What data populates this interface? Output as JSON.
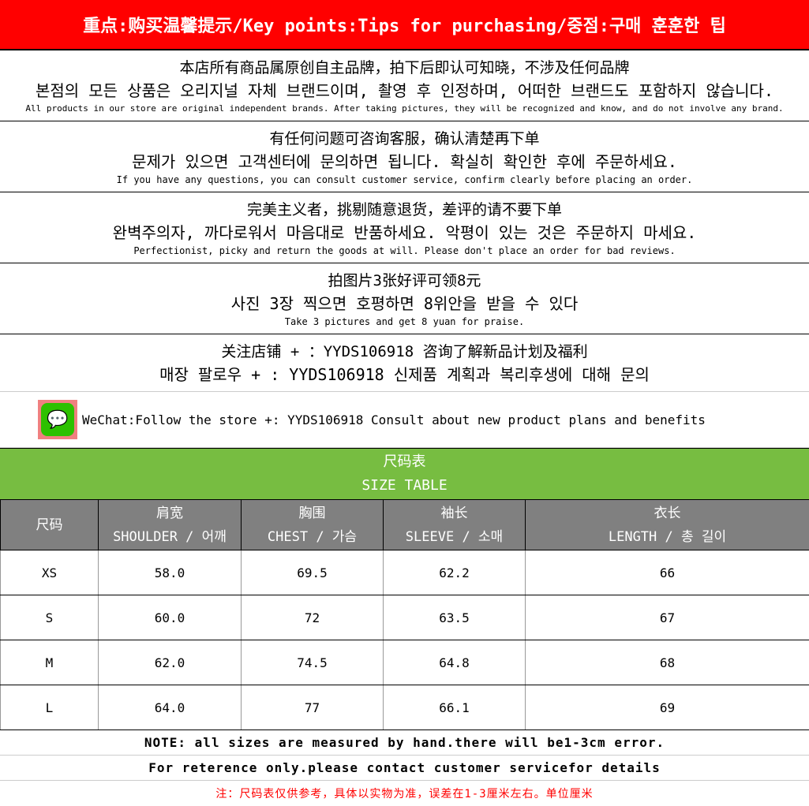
{
  "header": {
    "title": "重点:购买温馨提示/Key points:Tips for purchasing/중점:구매 훈훈한 팁"
  },
  "sections": [
    {
      "zh": "本店所有商品属原创自主品牌，拍下后即认可知晓，不涉及任何品牌",
      "ko": "본점의 모든 상품은 오리지널 자체 브랜드이며, 촬영 후 인정하며, 어떠한 브랜드도 포함하지 않습니다.",
      "en": "All products in our store are original independent brands. After taking pictures, they will be recognized and know, and do not involve any brand."
    },
    {
      "zh": "有任何问题可咨询客服，确认清楚再下单",
      "ko": "문제가 있으면 고객센터에 문의하면 됩니다. 확실히 확인한 후에 주문하세요.",
      "en": "If you have any questions, you can consult customer service, confirm clearly before placing an order."
    },
    {
      "zh": "完美主义者，挑剔随意退货，差评的请不要下单",
      "ko": "완벽주의자, 까다로워서 마음대로 반품하세요. 악평이 있는 것은 주문하지 마세요.",
      "en": "Perfectionist, picky and return the goods at will. Please don't place an order for bad reviews."
    },
    {
      "zh": "拍图片3张好评可领8元",
      "ko": "사진 3장 찍으면 호평하면 8위안을 받을 수 있다",
      "en": "Take 3 pictures and get 8 yuan for praise."
    },
    {
      "zh": "关注店铺 + ：YYDS106918 咨询了解新品计划及福利",
      "ko": "매장 팔로우 + : YYDS106918 신제품 계획과 복리후생에 대해 문의"
    }
  ],
  "wechat": {
    "icon": "wechat-icon",
    "text": "WeChat:Follow the store +: YYDS106918 Consult about new product plans and benefits"
  },
  "size_table": {
    "title_zh": "尺码表",
    "title_en": "SIZE TABLE",
    "columns": [
      {
        "zh": "尺码",
        "en": ""
      },
      {
        "zh": "肩宽",
        "en": "SHOULDER / 어깨"
      },
      {
        "zh": "胸围",
        "en": "CHEST / 가슴"
      },
      {
        "zh": "袖长",
        "en": "SLEEVE / 소매"
      },
      {
        "zh": "衣长",
        "en": "LENGTH / 총 길이"
      }
    ],
    "rows": [
      [
        "XS",
        "58.0",
        "69.5",
        "62.2",
        "66"
      ],
      [
        "S",
        "60.0",
        "72",
        "63.5",
        "67"
      ],
      [
        "M",
        "62.0",
        "74.5",
        "64.8",
        "68"
      ],
      [
        "L",
        "64.0",
        "77",
        "66.1",
        "69"
      ]
    ]
  },
  "notes": [
    "NOTE: all sizes are measured by hand.there will be1-3cm error.",
    "For reterence only.please contact customer servicefor details",
    "注：尺码表仅供参考，具体以实物为准，误差在1-3厘米左右。单位厘米"
  ],
  "colors": {
    "header": "#ff0000",
    "table_title": "#77bd41",
    "table_head": "#808080",
    "note_red": "#ff0000"
  }
}
